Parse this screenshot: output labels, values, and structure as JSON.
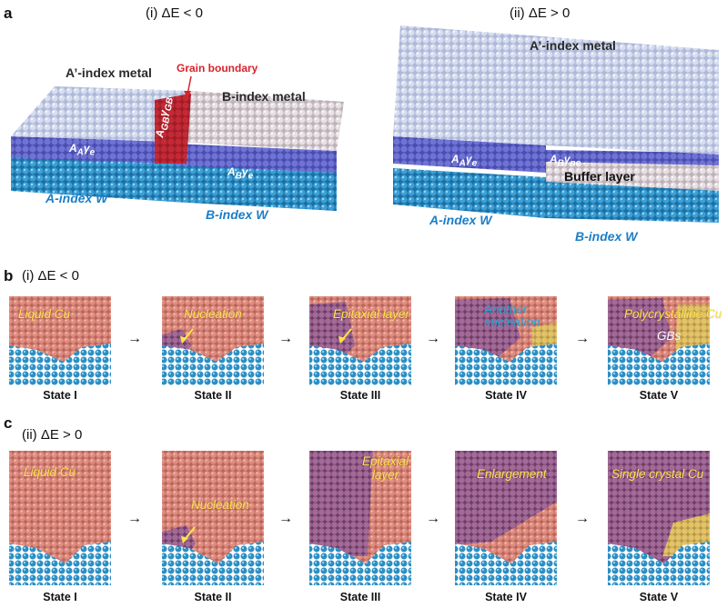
{
  "panel_a": {
    "letter": "a",
    "left": {
      "condition": "(i) ΔE < 0",
      "top_metal_a": "A’-index metal",
      "top_metal_b": "B-index metal",
      "grain_boundary": "Grain boundary",
      "gamma_gb": "A<sub>GB</sub>γ<sub>GB</sub>",
      "gamma_a": "A<sub>A</sub>γ<sub>e</sub>",
      "gamma_b": "A<sub>B</sub>γ<sub>e</sub>",
      "sub_a": "A-index W",
      "sub_b": "B-index W"
    },
    "right": {
      "condition": "(ii) ΔE > 0",
      "top_metal": "A’-index metal",
      "gamma_a": "A<sub>A</sub>γ<sub>e</sub>",
      "gamma_b": "A<sub>B</sub>γ<sub>ne</sub>",
      "buffer": "Buffer layer",
      "sub_a": "A-index W",
      "sub_b": "B-index W"
    }
  },
  "panel_b": {
    "letter": "b",
    "condition": "(i) ΔE < 0",
    "frames": [
      {
        "label": "Liquid Cu",
        "state": "State I"
      },
      {
        "label": "Nucleation",
        "state": "State II"
      },
      {
        "label": "Epitaxial layer",
        "state": "State III"
      },
      {
        "label": "Another nucleation",
        "label_line1": "Another",
        "label_line2": "nucleation",
        "state": "State IV"
      },
      {
        "label": "Polycrystalline Cu",
        "extra": "GBs",
        "state": "State V"
      }
    ]
  },
  "panel_c": {
    "letter": "c",
    "condition": "(ii) ΔE > 0",
    "frames": [
      {
        "label": "Liquid Cu",
        "state": "State I"
      },
      {
        "label": "Nucleation",
        "state": "State II"
      },
      {
        "label": "Epitaxial layer",
        "label_line1": "Epitaxial",
        "label_line2": "layer",
        "state": "State III"
      },
      {
        "label": "Enlargement",
        "state": "State IV"
      },
      {
        "label": "Single crystal Cu",
        "state": "State V"
      }
    ]
  },
  "colors": {
    "liquid": "#d98276",
    "crystal": "#8f5a86",
    "substrate": "#2c8fc4",
    "metal_light": "#c5cee6",
    "metal_b": "#dcd4d8",
    "interface": "#5a5dc0",
    "gb_red": "#b3202c",
    "label_yellow": "#ffe34a"
  }
}
